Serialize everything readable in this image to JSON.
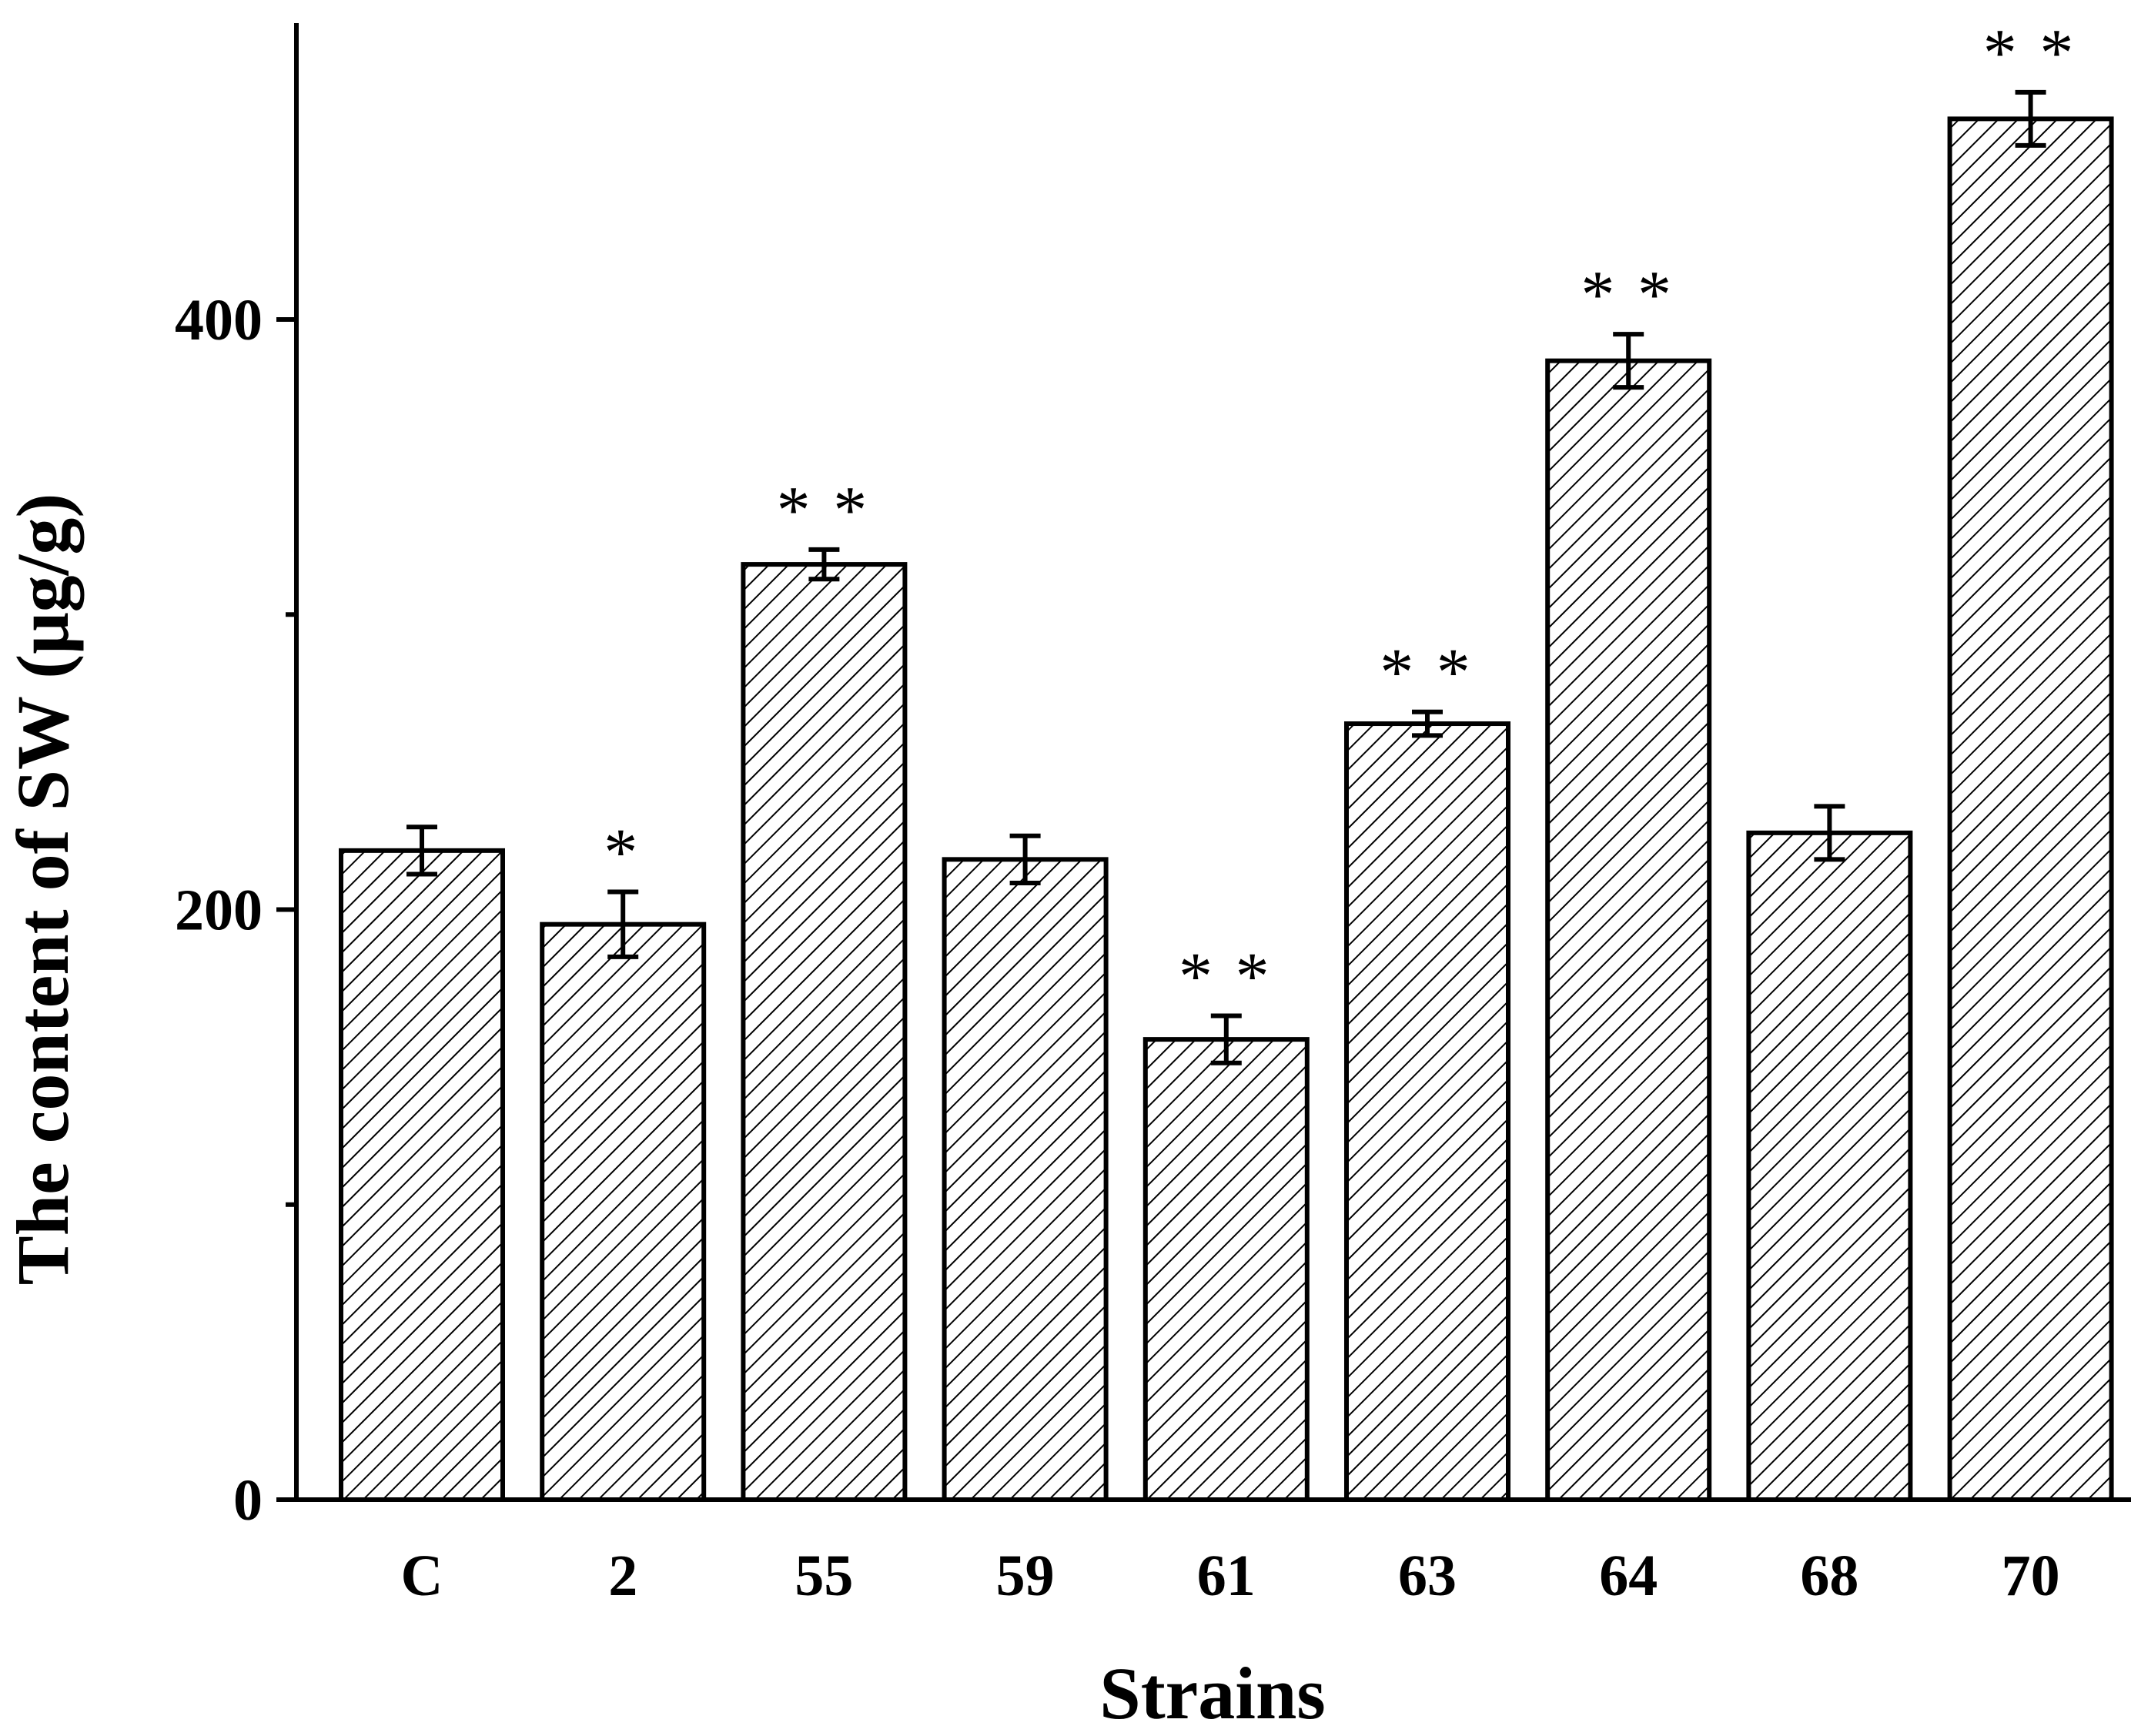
{
  "chart_data": {
    "type": "bar",
    "xlabel": "Strains",
    "ylabel": "The content of SW (μg/g)",
    "categories": [
      "C",
      "2",
      "55",
      "59",
      "61",
      "63",
      "64",
      "68",
      "70"
    ],
    "values": [
      220,
      195,
      317,
      217,
      156,
      263,
      386,
      226,
      468
    ],
    "errors": [
      8,
      11,
      5,
      8,
      8,
      4,
      9,
      9,
      9
    ],
    "significance": [
      "",
      "*",
      "**",
      "",
      "**",
      "**",
      "**",
      "",
      "**"
    ],
    "ylim": [
      0,
      500
    ],
    "yticks": [
      0,
      200,
      400
    ],
    "yticks_minor": [
      100,
      300
    ],
    "fill": "diagonal-hatch",
    "colors": {
      "bar_fill": "#ffffff",
      "hatch": "#000000",
      "outline": "#000000"
    },
    "grid": false,
    "legend": "none"
  }
}
